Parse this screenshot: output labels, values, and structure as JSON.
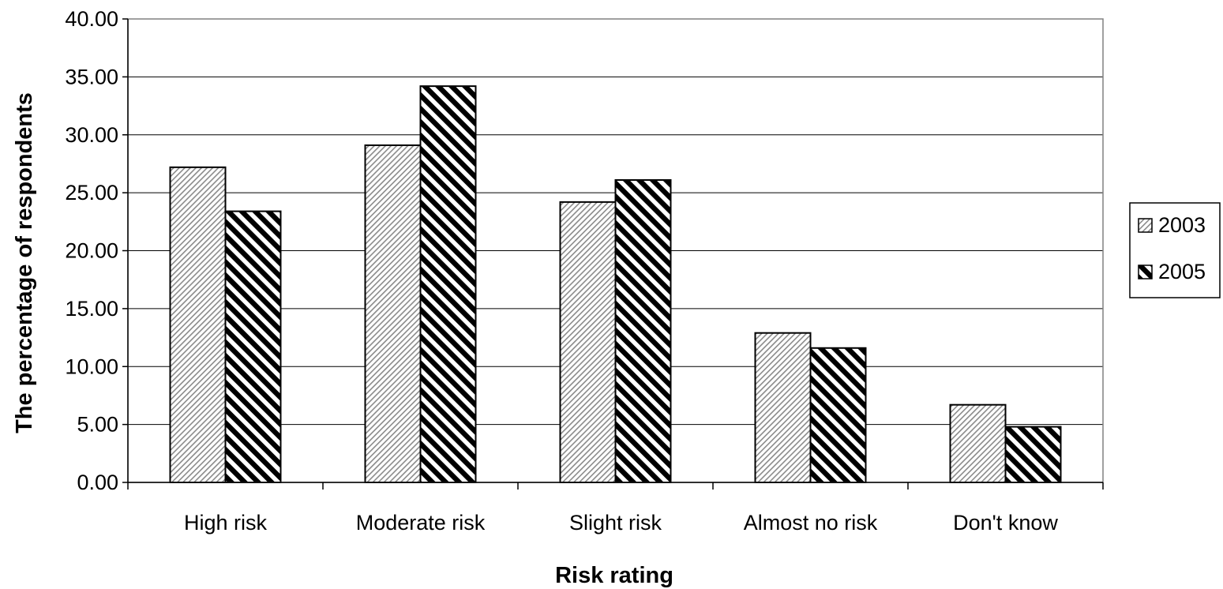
{
  "chart_data": {
    "type": "bar",
    "title": "",
    "xlabel": "Risk rating",
    "ylabel": "The percentage of respondents",
    "categories": [
      "High risk",
      "Moderate risk",
      "Slight risk",
      "Almost no risk",
      "Don't know"
    ],
    "series": [
      {
        "name": "2003",
        "values": [
          27.2,
          29.1,
          24.2,
          12.9,
          6.7
        ],
        "pattern": "light-diagonal-hatch",
        "color": "#ffffff"
      },
      {
        "name": "2005",
        "values": [
          23.4,
          34.2,
          26.1,
          11.6,
          4.8
        ],
        "pattern": "dark-diagonal-stripes",
        "color": "#000000"
      }
    ],
    "ylim": [
      0,
      40
    ],
    "yticks": [
      "0.00",
      "5.00",
      "10.00",
      "15.00",
      "20.00",
      "25.00",
      "30.00",
      "35.00",
      "40.00"
    ],
    "grid": true,
    "legend_position": "right"
  }
}
